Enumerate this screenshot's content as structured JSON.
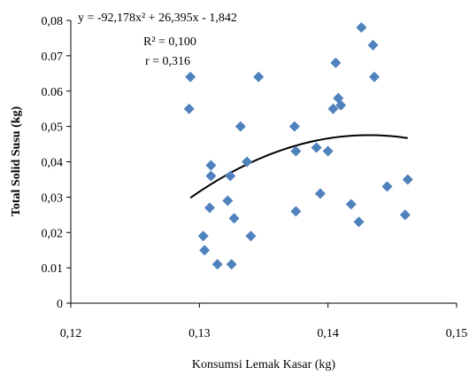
{
  "chart_data": {
    "type": "scatter",
    "xlabel": "Konsumsi Lemak Kasar (kg)",
    "ylabel": "Total Solid Susu (kg)",
    "xlim": [
      0.12,
      0.15
    ],
    "ylim": [
      0,
      0.08
    ],
    "x_ticks": [
      0.12,
      0.13,
      0.14,
      0.15
    ],
    "x_tick_labels": [
      "0,12",
      "0,13",
      "0,14",
      "0,15"
    ],
    "y_ticks": [
      0,
      0.01,
      0.02,
      0.03,
      0.04,
      0.05,
      0.06,
      0.07,
      0.08
    ],
    "y_tick_labels": [
      "0",
      "0.01",
      "0,02",
      "0,03",
      "0,04",
      "0,05",
      "0.06",
      "0.07",
      "0,08"
    ],
    "grid": false,
    "marker": "diamond",
    "marker_color": "#4F81BD",
    "trend_color": "#000000",
    "annotations": {
      "equation": "y = -92,178x² + 26,395x - 1,842",
      "r_squared": "R² = 0,100",
      "r": "r = 0,316"
    },
    "trendline": {
      "type": "polynomial",
      "a": -92.178,
      "b": 26.395,
      "c": -1.842,
      "x_start": 0.1293,
      "x_end": 0.1462
    },
    "points": [
      {
        "x": 0.1292,
        "y": 0.055
      },
      {
        "x": 0.1293,
        "y": 0.064
      },
      {
        "x": 0.1303,
        "y": 0.019
      },
      {
        "x": 0.1304,
        "y": 0.015
      },
      {
        "x": 0.1308,
        "y": 0.027
      },
      {
        "x": 0.1309,
        "y": 0.039
      },
      {
        "x": 0.1309,
        "y": 0.036
      },
      {
        "x": 0.1314,
        "y": 0.011
      },
      {
        "x": 0.1322,
        "y": 0.029
      },
      {
        "x": 0.1324,
        "y": 0.036
      },
      {
        "x": 0.1325,
        "y": 0.011
      },
      {
        "x": 0.1327,
        "y": 0.024
      },
      {
        "x": 0.1332,
        "y": 0.05
      },
      {
        "x": 0.1337,
        "y": 0.04
      },
      {
        "x": 0.134,
        "y": 0.019
      },
      {
        "x": 0.1346,
        "y": 0.064
      },
      {
        "x": 0.1374,
        "y": 0.05
      },
      {
        "x": 0.1375,
        "y": 0.043
      },
      {
        "x": 0.1375,
        "y": 0.026
      },
      {
        "x": 0.1391,
        "y": 0.044
      },
      {
        "x": 0.1394,
        "y": 0.031
      },
      {
        "x": 0.14,
        "y": 0.043
      },
      {
        "x": 0.1404,
        "y": 0.055
      },
      {
        "x": 0.1406,
        "y": 0.068
      },
      {
        "x": 0.1408,
        "y": 0.058
      },
      {
        "x": 0.141,
        "y": 0.056
      },
      {
        "x": 0.1418,
        "y": 0.028
      },
      {
        "x": 0.1424,
        "y": 0.023
      },
      {
        "x": 0.1426,
        "y": 0.078
      },
      {
        "x": 0.1435,
        "y": 0.073
      },
      {
        "x": 0.1436,
        "y": 0.064
      },
      {
        "x": 0.1446,
        "y": 0.033
      },
      {
        "x": 0.146,
        "y": 0.025
      },
      {
        "x": 0.1462,
        "y": 0.035
      }
    ]
  }
}
